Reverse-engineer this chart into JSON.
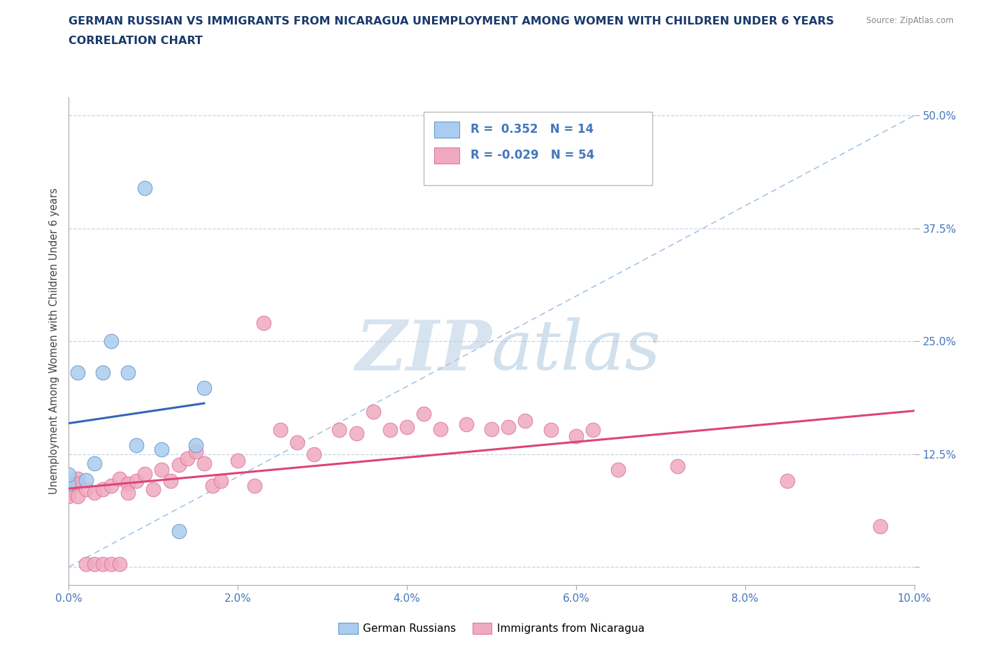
{
  "title_line1": "GERMAN RUSSIAN VS IMMIGRANTS FROM NICARAGUA UNEMPLOYMENT AMONG WOMEN WITH CHILDREN UNDER 6 YEARS",
  "title_line2": "CORRELATION CHART",
  "source": "Source: ZipAtlas.com",
  "ylabel": "Unemployment Among Women with Children Under 6 years",
  "xlim": [
    0.0,
    0.1
  ],
  "ylim": [
    -0.02,
    0.52
  ],
  "xticks": [
    0.0,
    0.02,
    0.04,
    0.06,
    0.08,
    0.1
  ],
  "yticks": [
    0.0,
    0.125,
    0.25,
    0.375,
    0.5
  ],
  "xticklabels": [
    "0.0%",
    "2.0%",
    "4.0%",
    "6.0%",
    "8.0%",
    "10.0%"
  ],
  "yticklabels": [
    "",
    "12.5%",
    "25.0%",
    "37.5%",
    "50.0%"
  ],
  "blue_R": "0.352",
  "blue_N": "14",
  "pink_R": "-0.029",
  "pink_N": "54",
  "background_color": "#ffffff",
  "grid_color": "#c8d4e8",
  "title_color": "#1a3a6b",
  "tick_color": "#4477bb",
  "ylabel_color": "#444444",
  "source_color": "#888888",
  "blue_scatter_color": "#aaccee",
  "blue_scatter_edge": "#6699cc",
  "pink_scatter_color": "#f0aac0",
  "pink_scatter_edge": "#dd7799",
  "blue_line_color": "#3366bb",
  "pink_line_color": "#dd4477",
  "diag_line_color": "#99bbdd",
  "watermark_color": "#c8daf0",
  "gr_x": [
    0.0,
    0.0,
    0.001,
    0.002,
    0.003,
    0.004,
    0.005,
    0.007,
    0.008,
    0.009,
    0.011,
    0.013,
    0.015,
    0.016
  ],
  "gr_y": [
    0.092,
    0.102,
    0.215,
    0.096,
    0.115,
    0.215,
    0.25,
    0.215,
    0.135,
    0.42,
    0.13,
    0.04,
    0.135,
    0.198
  ],
  "nic_x": [
    0.0,
    0.0,
    0.0,
    0.0,
    0.001,
    0.001,
    0.001,
    0.002,
    0.002,
    0.003,
    0.003,
    0.004,
    0.004,
    0.005,
    0.005,
    0.006,
    0.006,
    0.007,
    0.007,
    0.008,
    0.009,
    0.01,
    0.011,
    0.012,
    0.013,
    0.014,
    0.015,
    0.016,
    0.017,
    0.018,
    0.02,
    0.022,
    0.023,
    0.025,
    0.027,
    0.029,
    0.032,
    0.034,
    0.036,
    0.038,
    0.04,
    0.042,
    0.044,
    0.047,
    0.05,
    0.052,
    0.054,
    0.057,
    0.06,
    0.062,
    0.065,
    0.072,
    0.085,
    0.096
  ],
  "nic_y": [
    0.092,
    0.088,
    0.083,
    0.078,
    0.098,
    0.092,
    0.078,
    0.086,
    0.003,
    0.082,
    0.003,
    0.086,
    0.003,
    0.09,
    0.003,
    0.098,
    0.003,
    0.092,
    0.082,
    0.095,
    0.103,
    0.086,
    0.108,
    0.095,
    0.113,
    0.12,
    0.128,
    0.115,
    0.09,
    0.095,
    0.118,
    0.09,
    0.27,
    0.152,
    0.138,
    0.125,
    0.152,
    0.148,
    0.172,
    0.152,
    0.155,
    0.17,
    0.153,
    0.158,
    0.153,
    0.155,
    0.162,
    0.152,
    0.145,
    0.152,
    0.108,
    0.112,
    0.095,
    0.045
  ]
}
